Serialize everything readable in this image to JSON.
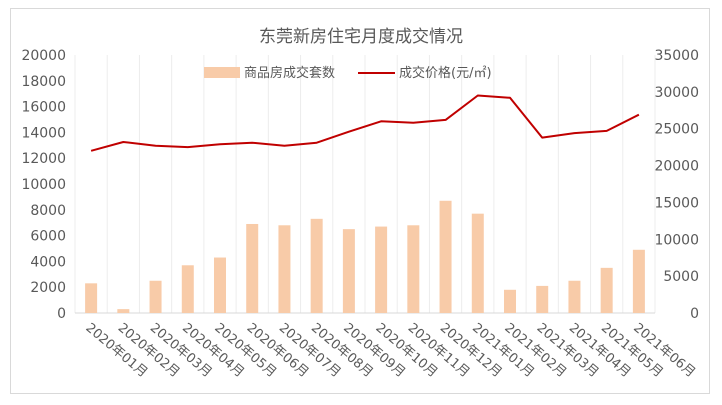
{
  "chart_data": {
    "type": "bar",
    "title": "东莞新房住宅月度成交情况",
    "categories": [
      "2020年01月",
      "2020年02月",
      "2020年03月",
      "2020年04月",
      "2020年05月",
      "2020年06月",
      "2020年07月",
      "2020年08月",
      "2020年09月",
      "2020年10月",
      "2020年11月",
      "2020年12月",
      "2021年01月",
      "2021年02月",
      "2021年03月",
      "2021年04月",
      "2021年05月",
      "2021年06月"
    ],
    "series": [
      {
        "name": "商品房成交套数",
        "kind": "bar",
        "axis": "left",
        "color": "#f8cba8",
        "values": [
          2300,
          300,
          2500,
          3700,
          4300,
          6900,
          6800,
          7300,
          6500,
          6700,
          6800,
          8700,
          7700,
          1800,
          2100,
          2500,
          3500,
          4900
        ]
      },
      {
        "name": "成交价格(元/㎡)",
        "kind": "line",
        "axis": "right",
        "color": "#c00000",
        "values": [
          22000,
          23200,
          22700,
          22500,
          22900,
          23100,
          22700,
          23100,
          24600,
          26000,
          25800,
          26200,
          29500,
          29200,
          23800,
          24400,
          24700,
          26900
        ]
      }
    ],
    "ylim_left": [
      0,
      20000
    ],
    "ylim_right": [
      0,
      35000
    ],
    "yticks_left": [
      "0",
      "2000",
      "4000",
      "6000",
      "8000",
      "10000",
      "12000",
      "14000",
      "16000",
      "18000",
      "20000"
    ],
    "yticks_right": [
      "0",
      "5000",
      "10000",
      "15000",
      "20000",
      "25000",
      "30000",
      "35000"
    ],
    "grid": "vertical",
    "legend_position": "top-center"
  }
}
